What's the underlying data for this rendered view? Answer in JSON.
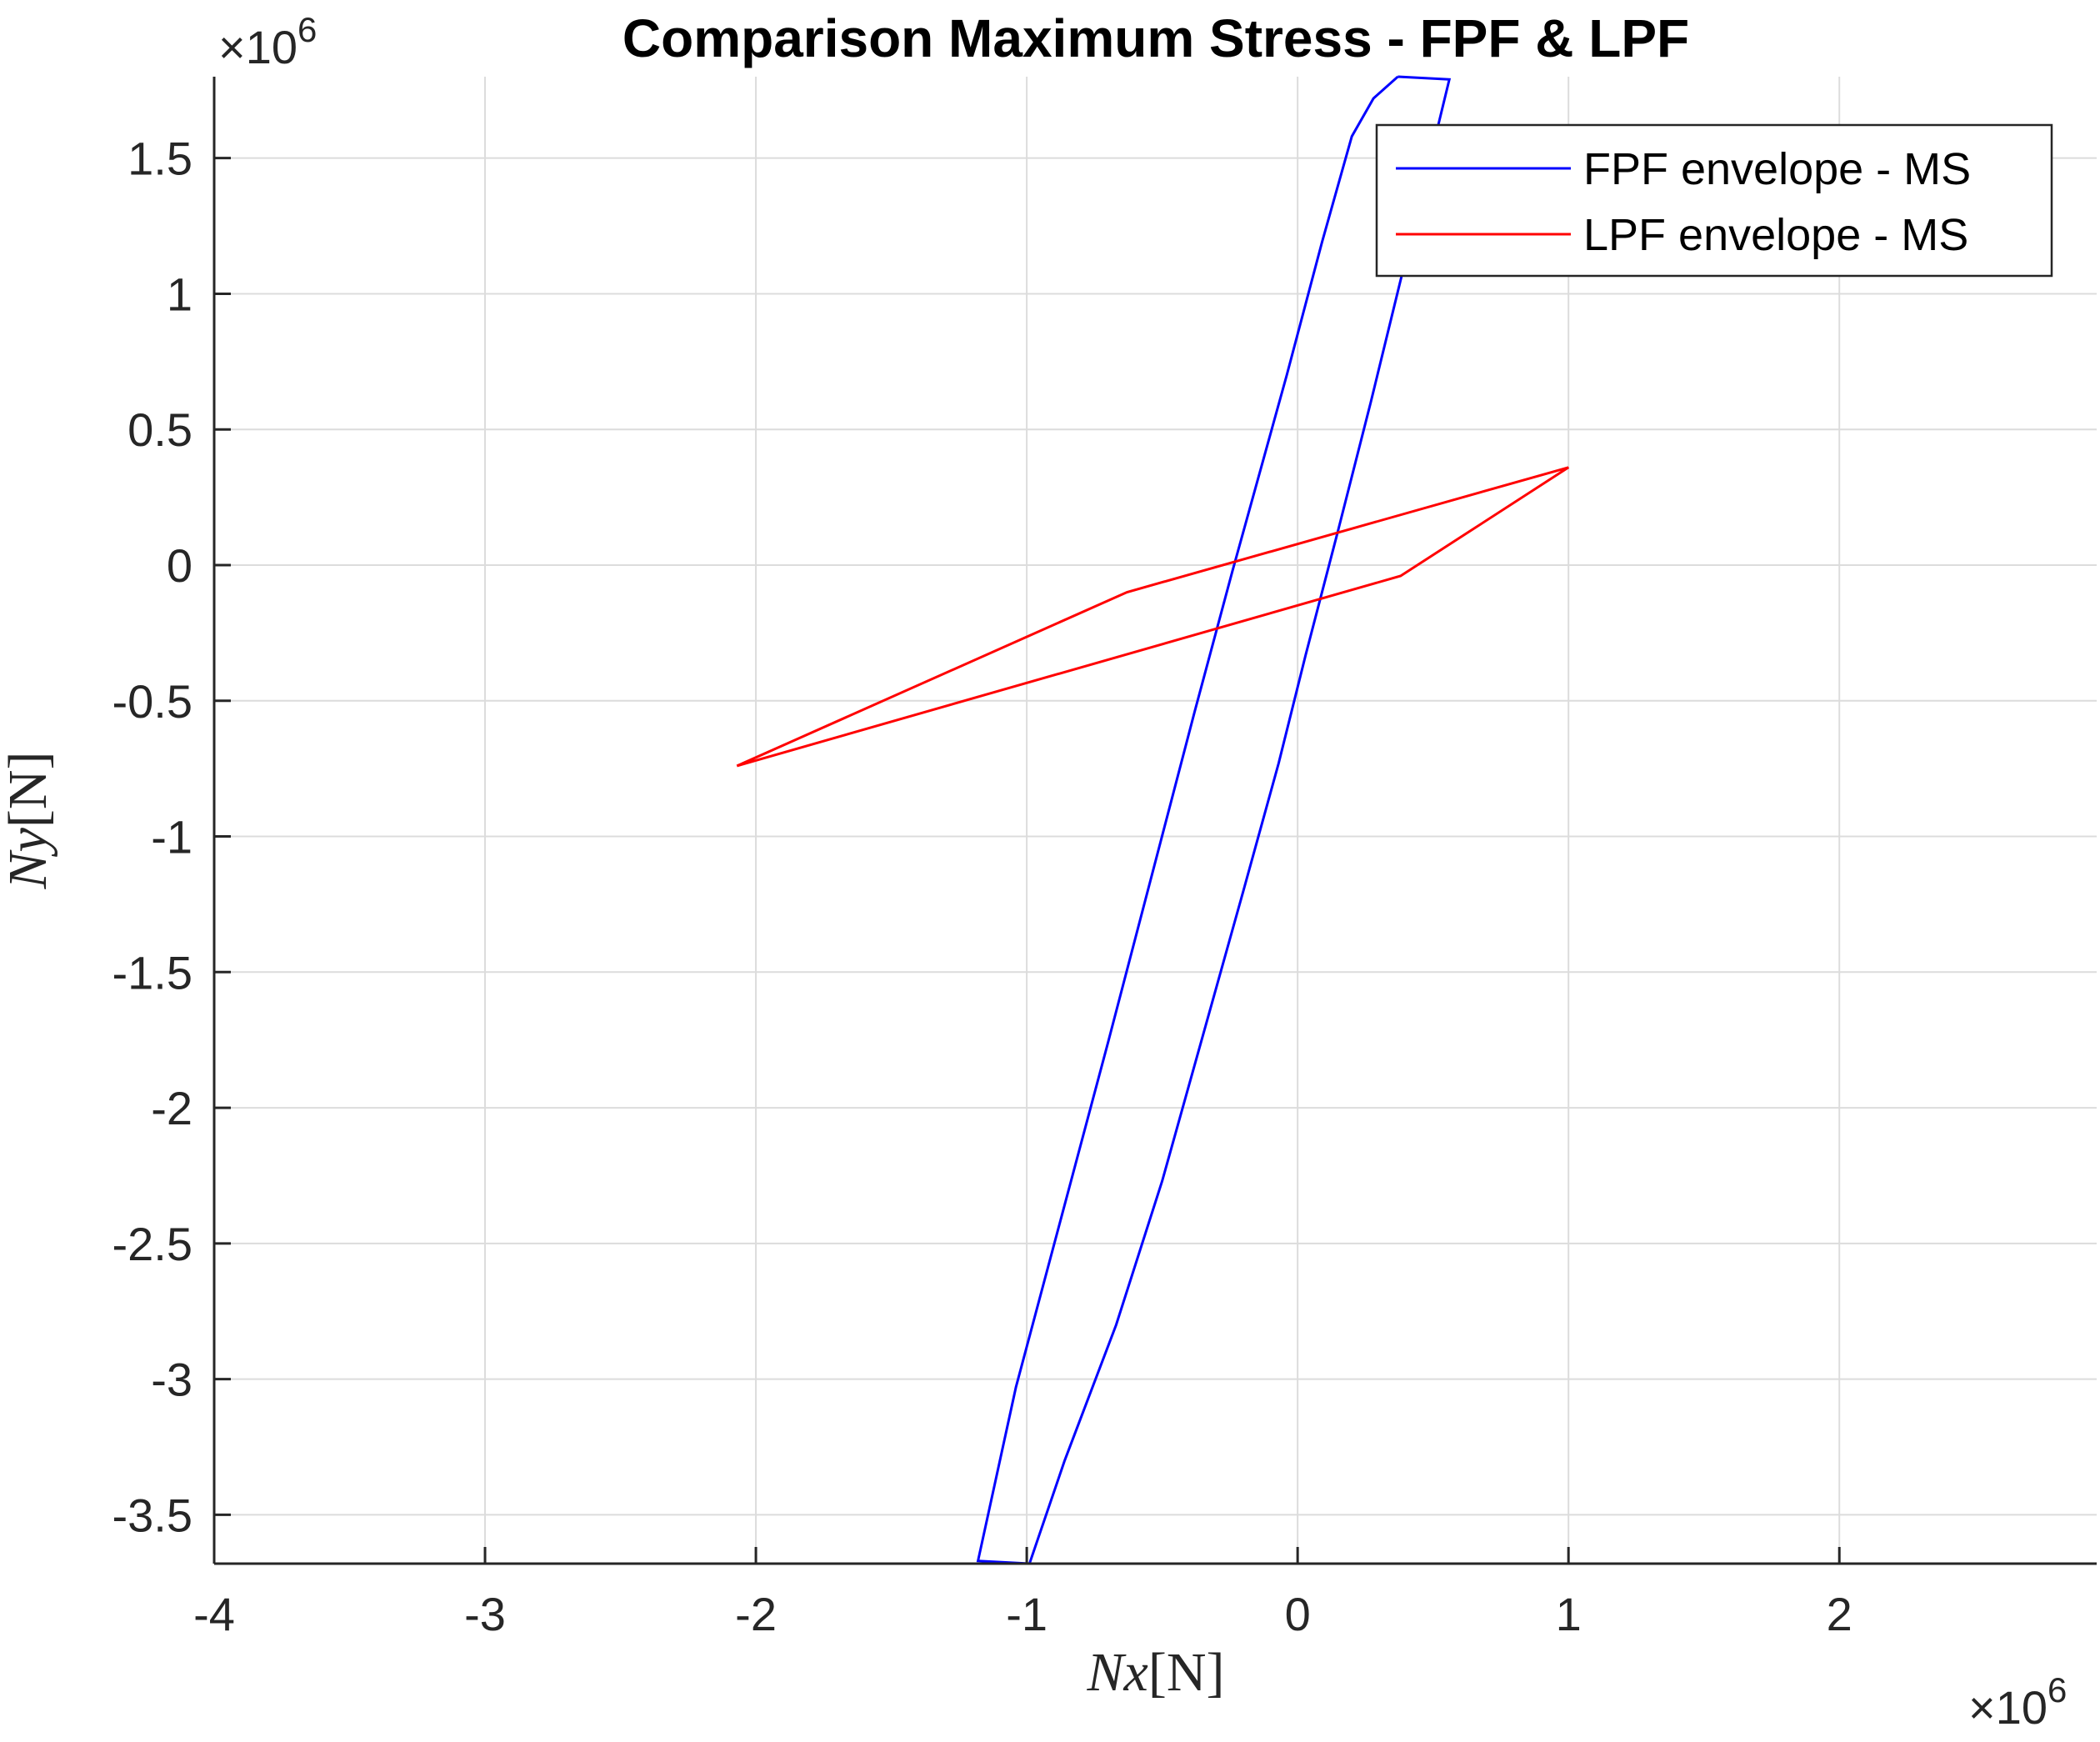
{
  "chart_data": {
    "type": "line",
    "title": "Comparison Maximum Stress - FPF & LPF",
    "xlabel": {
      "symbol": "Nx",
      "unit": "[N]"
    },
    "ylabel": {
      "symbol": "Ny",
      "unit": "[N]"
    },
    "x_exponent": {
      "prefix": "×10",
      "power": "6"
    },
    "y_exponent": {
      "prefix": "×10",
      "power": "6"
    },
    "xlim": [
      -4.0,
      2.95
    ],
    "ylim": [
      -3.68,
      1.8
    ],
    "xticks": [
      -4,
      -3,
      -2,
      -1,
      0,
      1,
      2
    ],
    "xtick_labels": [
      "-4",
      "-3",
      "-2",
      "-1",
      "0",
      "1",
      "2"
    ],
    "yticks": [
      -3.5,
      -3,
      -2.5,
      -2,
      -1.5,
      -1,
      -0.5,
      0,
      0.5,
      1,
      1.5
    ],
    "ytick_labels": [
      "-3.5",
      "-3",
      "-2.5",
      "-2",
      "-1.5",
      "-1",
      "-0.5",
      "0",
      "0.5",
      "1",
      "1.5"
    ],
    "grid": true,
    "legend_position": "top-right",
    "series": [
      {
        "name": "FPF envelope - MS",
        "color": "#0000ff",
        "x": [
          0.37,
          0.56,
          0.39,
          0.27,
          0.15,
          0.03,
          -0.07,
          -0.2,
          -0.5,
          -0.67,
          -0.86,
          -0.99,
          -1.18,
          -1.04,
          -0.7,
          -0.38,
          -0.24,
          -0.04,
          0.09,
          0.2,
          0.28,
          0.37
        ],
        "y": [
          1.8,
          1.79,
          1.09,
          0.6,
          0.13,
          -0.33,
          -0.73,
          -1.2,
          -2.27,
          -2.8,
          -3.3,
          -3.68,
          -3.67,
          -3.03,
          -1.76,
          -0.54,
          -0.02,
          0.7,
          1.19,
          1.58,
          1.72,
          1.8
        ]
      },
      {
        "name": "LPF envelope - MS",
        "color": "#ff0000",
        "x": [
          -2.07,
          -0.63,
          1.0,
          0.38,
          -2.07
        ],
        "y": [
          -0.74,
          -0.1,
          0.36,
          -0.04,
          -0.74
        ]
      }
    ]
  }
}
